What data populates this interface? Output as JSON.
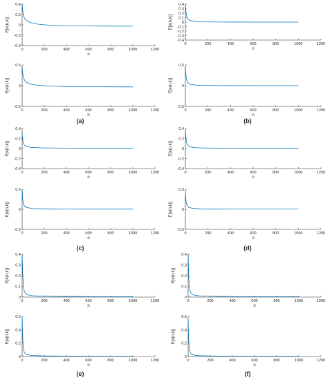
{
  "figure": {
    "line_color": "#0072bd",
    "axis_color": "#262626"
  },
  "chart_data": [
    {
      "type": "line",
      "panel": "a",
      "position": "top",
      "xlabel": "n",
      "ylabel": "E[e(n,k)]",
      "xlim": [
        0,
        1200
      ],
      "ylim": [
        -0.4,
        0.4
      ],
      "x_ticks": [
        0,
        200,
        400,
        600,
        800,
        1000,
        1200
      ],
      "y_ticks": [
        -0.4,
        -0.2,
        0,
        0.2,
        0.4
      ],
      "series": [
        {
          "x": [
            0,
            5,
            10,
            20,
            30,
            50,
            75,
            100,
            150,
            200,
            300,
            400,
            600,
            800,
            1000
          ],
          "y": [
            0.4,
            0.28,
            0.2,
            0.13,
            0.1,
            0.07,
            0.045,
            0.03,
            0.012,
            0.002,
            -0.012,
            -0.018,
            -0.022,
            -0.024,
            -0.025
          ]
        }
      ]
    },
    {
      "type": "line",
      "panel": "a",
      "position": "bottom",
      "xlabel": "n",
      "ylabel": "E[e(n,k)]",
      "xlim": [
        0,
        1200
      ],
      "ylim": [
        -0.5,
        0.5
      ],
      "x_ticks": [
        0,
        200,
        400,
        600,
        800,
        1000,
        1200
      ],
      "y_ticks": [
        -0.5,
        0,
        0.5
      ],
      "series": [
        {
          "x": [
            0,
            5,
            10,
            20,
            30,
            50,
            75,
            100,
            150,
            200,
            300,
            400,
            600,
            800,
            1000
          ],
          "y": [
            0.45,
            0.3,
            0.22,
            0.14,
            0.1,
            0.065,
            0.04,
            0.025,
            0.008,
            -0.002,
            -0.015,
            -0.02,
            -0.025,
            -0.028,
            -0.03
          ]
        }
      ]
    },
    {
      "type": "line",
      "panel": "b",
      "position": "top",
      "xlabel": "n",
      "ylabel": "E[e(n,k)]",
      "xlim": [
        0,
        1200
      ],
      "ylim": [
        -0.4,
        0.4
      ],
      "x_ticks": [
        0,
        200,
        400,
        600,
        800,
        1000,
        1200
      ],
      "y_ticks": [
        -0.4,
        -0.3,
        -0.2,
        -0.1,
        0,
        0.1,
        0.2,
        0.3,
        0.4
      ],
      "series": [
        {
          "x": [
            0,
            5,
            10,
            20,
            30,
            50,
            75,
            100,
            150,
            200,
            300,
            400,
            600,
            800,
            1000
          ],
          "y": [
            0.4,
            0.22,
            0.14,
            0.08,
            0.05,
            0.03,
            0.02,
            0.012,
            0.006,
            0.004,
            0.002,
            0.001,
            0.0,
            0.0,
            0.0
          ]
        }
      ]
    },
    {
      "type": "line",
      "panel": "b",
      "position": "bottom",
      "xlabel": "n",
      "ylabel": "E[e(n,k)]",
      "xlim": [
        0,
        1200
      ],
      "ylim": [
        -0.5,
        0.5
      ],
      "x_ticks": [
        0,
        200,
        400,
        600,
        800,
        1000,
        1200
      ],
      "y_ticks": [
        -0.5,
        0,
        0.5
      ],
      "series": [
        {
          "x": [
            0,
            5,
            10,
            20,
            30,
            50,
            75,
            100,
            150,
            200,
            300,
            400,
            600,
            800,
            1000
          ],
          "y": [
            0.45,
            0.25,
            0.15,
            0.08,
            0.05,
            0.03,
            0.02,
            0.012,
            0.006,
            0.004,
            0.002,
            0.001,
            0.0,
            0.0,
            0.0
          ]
        }
      ]
    },
    {
      "type": "line",
      "panel": "c",
      "position": "top",
      "xlabel": "n",
      "ylabel": "E[e(n,k)]",
      "xlim": [
        0,
        1200
      ],
      "ylim": [
        -0.4,
        0.4
      ],
      "x_ticks": [
        0,
        200,
        400,
        600,
        800,
        1000,
        1200
      ],
      "y_ticks": [
        -0.4,
        -0.2,
        0,
        0.2,
        0.4
      ],
      "series": [
        {
          "x": [
            0,
            5,
            10,
            20,
            30,
            50,
            75,
            100,
            150,
            200,
            300,
            400,
            600,
            800,
            1000
          ],
          "y": [
            0.3,
            0.18,
            0.11,
            0.07,
            0.05,
            0.035,
            0.025,
            0.02,
            0.015,
            0.012,
            0.01,
            0.009,
            0.008,
            0.008,
            0.008
          ]
        }
      ]
    },
    {
      "type": "line",
      "panel": "c",
      "position": "bottom",
      "xlabel": "n",
      "ylabel": "E[e(n,k)]",
      "xlim": [
        0,
        1200
      ],
      "ylim": [
        -0.5,
        0.5
      ],
      "x_ticks": [
        0,
        200,
        400,
        600,
        800,
        1000,
        1200
      ],
      "y_ticks": [
        -0.5,
        0,
        0.5
      ],
      "series": [
        {
          "x": [
            0,
            5,
            10,
            20,
            30,
            50,
            75,
            100,
            150,
            200,
            300,
            400,
            600,
            800,
            1000
          ],
          "y": [
            0.5,
            0.25,
            0.15,
            0.09,
            0.06,
            0.04,
            0.03,
            0.02,
            0.015,
            0.012,
            0.01,
            0.009,
            0.008,
            0.008,
            0.008
          ]
        }
      ]
    },
    {
      "type": "line",
      "panel": "d",
      "position": "top",
      "xlabel": "n",
      "ylabel": "E[e(n,k)]",
      "xlim": [
        0,
        1200
      ],
      "ylim": [
        -0.4,
        0.4
      ],
      "x_ticks": [
        0,
        200,
        400,
        600,
        800,
        1000,
        1200
      ],
      "y_ticks": [
        -0.4,
        -0.2,
        0,
        0.2,
        0.4
      ],
      "series": [
        {
          "x": [
            0,
            5,
            10,
            20,
            30,
            50,
            75,
            100,
            150,
            200,
            300,
            400,
            600,
            800,
            1000
          ],
          "y": [
            0.35,
            0.2,
            0.12,
            0.07,
            0.045,
            0.03,
            0.022,
            0.016,
            0.012,
            0.01,
            0.008,
            0.007,
            0.006,
            0.006,
            0.006
          ]
        }
      ]
    },
    {
      "type": "line",
      "panel": "d",
      "position": "bottom",
      "xlabel": "n",
      "ylabel": "E[e(n,k)]",
      "xlim": [
        0,
        1200
      ],
      "ylim": [
        -0.5,
        0.5
      ],
      "x_ticks": [
        0,
        200,
        400,
        600,
        800,
        1000,
        1200
      ],
      "y_ticks": [
        -0.5,
        0,
        0.5
      ],
      "series": [
        {
          "x": [
            0,
            5,
            10,
            20,
            30,
            50,
            75,
            100,
            150,
            200,
            300,
            400,
            600,
            800,
            1000
          ],
          "y": [
            0.4,
            0.22,
            0.13,
            0.08,
            0.05,
            0.035,
            0.025,
            0.018,
            0.012,
            0.01,
            0.008,
            0.007,
            0.006,
            0.006,
            0.006
          ]
        }
      ]
    },
    {
      "type": "line",
      "panel": "e",
      "position": "top",
      "xlabel": "n",
      "ylabel": "E[e(n,k)]",
      "xlim": [
        0,
        1200
      ],
      "ylim": [
        0,
        0.4
      ],
      "x_ticks": [
        0,
        200,
        400,
        600,
        800,
        1000,
        1200
      ],
      "y_ticks": [
        0,
        0.1,
        0.2,
        0.3,
        0.4
      ],
      "series": [
        {
          "x": [
            0,
            3,
            6,
            10,
            15,
            20,
            30,
            50,
            75,
            100,
            150,
            200,
            300,
            400,
            600,
            800,
            1000
          ],
          "y": [
            0.4,
            0.3,
            0.2,
            0.13,
            0.08,
            0.055,
            0.035,
            0.022,
            0.016,
            0.013,
            0.01,
            0.009,
            0.007,
            0.006,
            0.005,
            0.004,
            0.004
          ]
        }
      ]
    },
    {
      "type": "line",
      "panel": "e",
      "position": "bottom",
      "xlabel": "n",
      "ylabel": "E[e(n,k)]",
      "xlim": [
        0,
        1200
      ],
      "ylim": [
        0,
        0.6
      ],
      "x_ticks": [
        0,
        200,
        400,
        600,
        800,
        1000,
        1200
      ],
      "y_ticks": [
        0,
        0.2,
        0.4,
        0.6
      ],
      "series": [
        {
          "x": [
            0,
            3,
            6,
            10,
            15,
            20,
            30,
            50,
            75,
            100,
            150,
            200,
            300,
            400,
            600,
            800,
            1000
          ],
          "y": [
            0.6,
            0.4,
            0.25,
            0.15,
            0.09,
            0.06,
            0.04,
            0.025,
            0.018,
            0.014,
            0.011,
            0.009,
            0.007,
            0.006,
            0.005,
            0.004,
            0.004
          ]
        }
      ]
    },
    {
      "type": "line",
      "panel": "f",
      "position": "top",
      "xlabel": "n",
      "ylabel": "E[e(n,k)]",
      "xlim": [
        0,
        1200
      ],
      "ylim": [
        0,
        0.4
      ],
      "x_ticks": [
        0,
        200,
        400,
        600,
        800,
        1000,
        1200
      ],
      "y_ticks": [
        0,
        0.1,
        0.2,
        0.3,
        0.4
      ],
      "series": [
        {
          "x": [
            0,
            3,
            6,
            10,
            15,
            20,
            30,
            50,
            75,
            100,
            150,
            200,
            300,
            400,
            600,
            800,
            1000
          ],
          "y": [
            0.4,
            0.28,
            0.18,
            0.11,
            0.07,
            0.05,
            0.032,
            0.02,
            0.015,
            0.012,
            0.009,
            0.008,
            0.006,
            0.005,
            0.004,
            0.004,
            0.004
          ]
        }
      ]
    },
    {
      "type": "line",
      "panel": "f",
      "position": "bottom",
      "xlabel": "n",
      "ylabel": "E[e(n,k)]",
      "xlim": [
        0,
        1200
      ],
      "ylim": [
        0,
        0.6
      ],
      "x_ticks": [
        0,
        200,
        400,
        600,
        800,
        1000,
        1200
      ],
      "y_ticks": [
        0,
        0.2,
        0.4,
        0.6
      ],
      "series": [
        {
          "x": [
            0,
            3,
            6,
            10,
            15,
            20,
            30,
            50,
            75,
            100,
            150,
            200,
            300,
            400,
            600,
            800,
            1000
          ],
          "y": [
            0.55,
            0.35,
            0.22,
            0.13,
            0.08,
            0.055,
            0.035,
            0.022,
            0.016,
            0.013,
            0.01,
            0.008,
            0.006,
            0.005,
            0.004,
            0.004,
            0.004
          ]
        }
      ]
    }
  ],
  "panel_labels": {
    "a": "(a)",
    "b": "(b)",
    "c": "(c)",
    "d": "(d)",
    "e": "(e)",
    "f": "(f)"
  }
}
